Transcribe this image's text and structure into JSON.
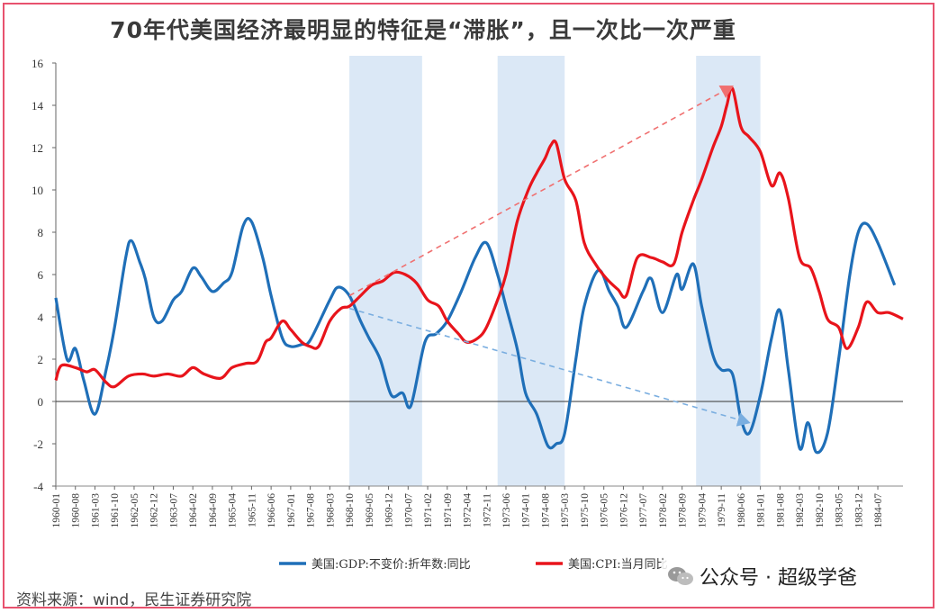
{
  "title": "70年代美国经济最明显的特征是“滞胀”，且一次比一次严重",
  "source": "资料来源：wind，民生证券研究院",
  "watermark": "公众号 · 超级学爸",
  "colors": {
    "gdp": "#1f6fb8",
    "cpi": "#e8141b",
    "band": "#dbe8f6",
    "frame": "#e8526e"
  },
  "chart_data": {
    "type": "line",
    "title": "",
    "xlabel": "",
    "ylabel": "",
    "ylim": [
      -4,
      16
    ],
    "yticks": [
      -4,
      -2,
      0,
      2,
      4,
      6,
      8,
      10,
      12,
      14,
      16
    ],
    "x_range": [
      "1960-01",
      "1985-04"
    ],
    "x_tick_labels": [
      "1960-01",
      "1960-08",
      "1961-03",
      "1961-10",
      "1962-05",
      "1962-12",
      "1963-07",
      "1964-02",
      "1964-09",
      "1965-04",
      "1965-11",
      "1966-06",
      "1967-01",
      "1967-08",
      "1968-03",
      "1968-10",
      "1969-05",
      "1969-12",
      "1970-07",
      "1971-02",
      "1971-09",
      "1972-04",
      "1972-11",
      "1973-06",
      "1974-01",
      "1974-08",
      "1975-03",
      "1975-10",
      "1976-05",
      "1976-12",
      "1977-07",
      "1978-02",
      "1978-09",
      "1979-04",
      "1979-11",
      "1980-06",
      "1981-01",
      "1981-08",
      "1982-03",
      "1982-10",
      "1983-05",
      "1983-12",
      "1984-07"
    ],
    "shaded_periods": [
      [
        "1968-10",
        "1970-12"
      ],
      [
        "1973-03",
        "1975-03"
      ],
      [
        "1979-02",
        "1981-01"
      ]
    ],
    "legend": [
      "美国:GDP:不变价:折年数:同比",
      "美国:CPI:当月同比"
    ],
    "legend_position": "bottom",
    "series": [
      {
        "name": "美国:GDP:不变价:折年数:同比",
        "points": [
          [
            "1960-01",
            4.9
          ],
          [
            "1960-05",
            2.0
          ],
          [
            "1960-08",
            2.5
          ],
          [
            "1960-11",
            1.0
          ],
          [
            "1961-03",
            -0.6
          ],
          [
            "1961-07",
            1.5
          ],
          [
            "1961-10",
            3.5
          ],
          [
            "1962-02",
            6.8
          ],
          [
            "1962-04",
            7.6
          ],
          [
            "1962-07",
            6.6
          ],
          [
            "1962-09",
            5.8
          ],
          [
            "1962-12",
            4.0
          ],
          [
            "1963-03",
            3.8
          ],
          [
            "1963-07",
            4.8
          ],
          [
            "1963-10",
            5.2
          ],
          [
            "1964-02",
            6.3
          ],
          [
            "1964-05",
            5.9
          ],
          [
            "1964-09",
            5.2
          ],
          [
            "1965-01",
            5.6
          ],
          [
            "1965-04",
            6.1
          ],
          [
            "1965-08",
            8.3
          ],
          [
            "1965-11",
            8.5
          ],
          [
            "1966-03",
            6.8
          ],
          [
            "1966-06",
            5.0
          ],
          [
            "1966-10",
            3.0
          ],
          [
            "1967-01",
            2.6
          ],
          [
            "1967-05",
            2.7
          ],
          [
            "1967-08",
            2.9
          ],
          [
            "1968-03",
            4.8
          ],
          [
            "1968-06",
            5.4
          ],
          [
            "1968-10",
            5.0
          ],
          [
            "1969-02",
            3.8
          ],
          [
            "1969-05",
            3.0
          ],
          [
            "1969-09",
            2.0
          ],
          [
            "1970-01",
            0.3
          ],
          [
            "1970-05",
            0.4
          ],
          [
            "1970-08",
            -0.2
          ],
          [
            "1971-01",
            2.8
          ],
          [
            "1971-05",
            3.2
          ],
          [
            "1971-09",
            3.8
          ],
          [
            "1972-02",
            5.2
          ],
          [
            "1972-07",
            6.8
          ],
          [
            "1972-11",
            7.5
          ],
          [
            "1973-03",
            6.0
          ],
          [
            "1973-06",
            4.5
          ],
          [
            "1973-10",
            2.5
          ],
          [
            "1974-01",
            0.4
          ],
          [
            "1974-05",
            -0.6
          ],
          [
            "1974-09",
            -2.1
          ],
          [
            "1974-12",
            -2.0
          ],
          [
            "1975-03",
            -1.5
          ],
          [
            "1975-07",
            2.0
          ],
          [
            "1975-10",
            4.5
          ],
          [
            "1976-03",
            6.2
          ],
          [
            "1976-07",
            5.2
          ],
          [
            "1976-10",
            4.5
          ],
          [
            "1977-01",
            3.5
          ],
          [
            "1977-07",
            5.2
          ],
          [
            "1977-10",
            5.8
          ],
          [
            "1978-02",
            4.2
          ],
          [
            "1978-07",
            6.0
          ],
          [
            "1978-09",
            5.3
          ],
          [
            "1979-01",
            6.5
          ],
          [
            "1979-04",
            4.5
          ],
          [
            "1979-08",
            2.2
          ],
          [
            "1979-11",
            1.5
          ],
          [
            "1980-03",
            1.3
          ],
          [
            "1980-06",
            -0.8
          ],
          [
            "1980-09",
            -1.5
          ],
          [
            "1981-01",
            0.3
          ],
          [
            "1981-05",
            3.0
          ],
          [
            "1981-08",
            4.3
          ],
          [
            "1981-11",
            1.5
          ],
          [
            "1982-03",
            -2.2
          ],
          [
            "1982-06",
            -1.0
          ],
          [
            "1982-09",
            -2.4
          ],
          [
            "1983-01",
            -1.5
          ],
          [
            "1983-05",
            2.0
          ],
          [
            "1983-09",
            6.0
          ],
          [
            "1983-12",
            8.0
          ],
          [
            "1984-03",
            8.4
          ],
          [
            "1984-07",
            7.5
          ],
          [
            "1985-01",
            5.5
          ]
        ]
      },
      {
        "name": "美国:CPI:当月同比",
        "points": [
          [
            "1960-01",
            1.0
          ],
          [
            "1960-03",
            1.7
          ],
          [
            "1960-08",
            1.6
          ],
          [
            "1960-12",
            1.4
          ],
          [
            "1961-03",
            1.5
          ],
          [
            "1961-07",
            0.9
          ],
          [
            "1961-10",
            0.7
          ],
          [
            "1962-03",
            1.2
          ],
          [
            "1962-08",
            1.3
          ],
          [
            "1962-12",
            1.2
          ],
          [
            "1963-05",
            1.3
          ],
          [
            "1963-10",
            1.2
          ],
          [
            "1964-02",
            1.6
          ],
          [
            "1964-06",
            1.3
          ],
          [
            "1964-12",
            1.1
          ],
          [
            "1965-04",
            1.6
          ],
          [
            "1965-09",
            1.8
          ],
          [
            "1966-01",
            1.9
          ],
          [
            "1966-04",
            2.8
          ],
          [
            "1966-06",
            3.0
          ],
          [
            "1966-10",
            3.8
          ],
          [
            "1967-01",
            3.4
          ],
          [
            "1967-05",
            2.8
          ],
          [
            "1967-08",
            2.6
          ],
          [
            "1967-11",
            2.6
          ],
          [
            "1968-03",
            3.8
          ],
          [
            "1968-07",
            4.4
          ],
          [
            "1968-10",
            4.5
          ],
          [
            "1969-02",
            5.0
          ],
          [
            "1969-06",
            5.5
          ],
          [
            "1969-10",
            5.7
          ],
          [
            "1970-02",
            6.1
          ],
          [
            "1970-06",
            6.0
          ],
          [
            "1970-10",
            5.6
          ],
          [
            "1971-02",
            4.8
          ],
          [
            "1971-06",
            4.5
          ],
          [
            "1971-09",
            3.8
          ],
          [
            "1972-01",
            3.2
          ],
          [
            "1972-04",
            2.8
          ],
          [
            "1972-08",
            3.0
          ],
          [
            "1972-11",
            3.5
          ],
          [
            "1973-03",
            4.8
          ],
          [
            "1973-06",
            6.0
          ],
          [
            "1973-10",
            8.5
          ],
          [
            "1974-02",
            10.0
          ],
          [
            "1974-05",
            10.8
          ],
          [
            "1974-08",
            11.5
          ],
          [
            "1974-10",
            12.1
          ],
          [
            "1974-12",
            12.2
          ],
          [
            "1975-03",
            10.5
          ],
          [
            "1975-07",
            9.5
          ],
          [
            "1975-10",
            7.5
          ],
          [
            "1976-02",
            6.5
          ],
          [
            "1976-06",
            5.8
          ],
          [
            "1976-10",
            5.3
          ],
          [
            "1977-01",
            5.0
          ],
          [
            "1977-05",
            6.8
          ],
          [
            "1977-10",
            6.8
          ],
          [
            "1978-02",
            6.6
          ],
          [
            "1978-06",
            6.5
          ],
          [
            "1978-09",
            8.0
          ],
          [
            "1979-01",
            9.5
          ],
          [
            "1979-04",
            10.5
          ],
          [
            "1979-08",
            12.0
          ],
          [
            "1979-11",
            13.0
          ],
          [
            "1980-01",
            14.0
          ],
          [
            "1980-03",
            14.8
          ],
          [
            "1980-06",
            13.0
          ],
          [
            "1980-09",
            12.5
          ],
          [
            "1981-01",
            11.8
          ],
          [
            "1981-05",
            10.2
          ],
          [
            "1981-08",
            10.8
          ],
          [
            "1981-11",
            9.6
          ],
          [
            "1982-03",
            6.8
          ],
          [
            "1982-07",
            6.3
          ],
          [
            "1982-10",
            5.2
          ],
          [
            "1983-01",
            3.9
          ],
          [
            "1983-05",
            3.5
          ],
          [
            "1983-08",
            2.5
          ],
          [
            "1983-12",
            3.5
          ],
          [
            "1984-03",
            4.7
          ],
          [
            "1984-07",
            4.2
          ],
          [
            "1984-11",
            4.2
          ],
          [
            "1985-04",
            3.9
          ]
        ]
      }
    ],
    "annotations": [
      {
        "type": "arrow",
        "color": "red",
        "style": "dashed",
        "from": [
          "1968-10",
          5.0
        ],
        "to": [
          "1980-03",
          14.9
        ]
      },
      {
        "type": "arrow",
        "color": "blue",
        "style": "dashed",
        "from": [
          "1968-10",
          4.4
        ],
        "to": [
          "1980-09",
          -1.0
        ]
      }
    ]
  }
}
